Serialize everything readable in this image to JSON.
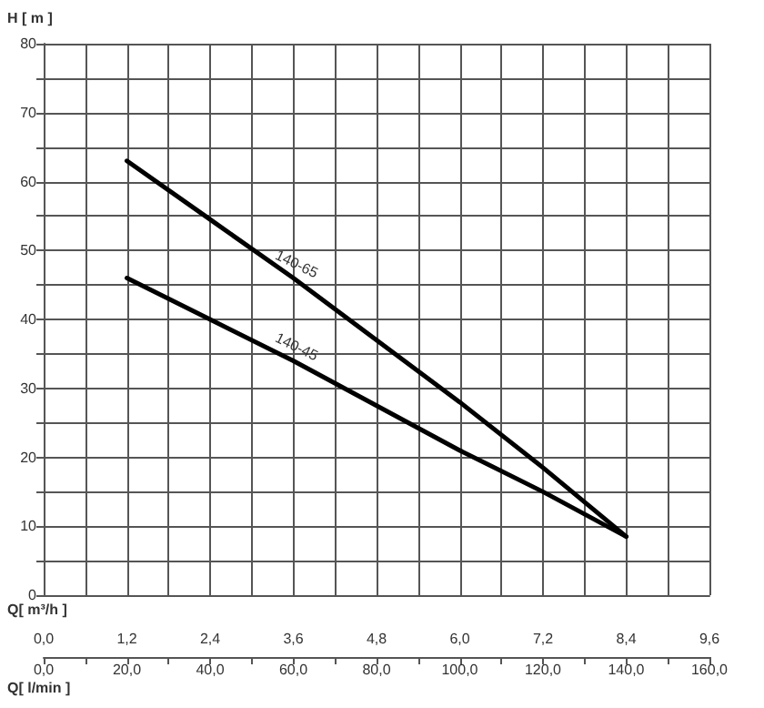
{
  "chart_data": {
    "type": "line",
    "ylabel": "H [ m ]",
    "xlabel": "Q[ l/min ]",
    "x2label": "Q[ m³/h ]",
    "xlim": [
      0,
      160
    ],
    "ylim": [
      0,
      80
    ],
    "xticks": [
      {
        "value": 0,
        "label": "0,0"
      },
      {
        "value": 10,
        "label": null
      },
      {
        "value": 20,
        "label": "20,0"
      },
      {
        "value": 30,
        "label": null
      },
      {
        "value": 40,
        "label": "40,0"
      },
      {
        "value": 50,
        "label": null
      },
      {
        "value": 60,
        "label": "60,0"
      },
      {
        "value": 70,
        "label": null
      },
      {
        "value": 80,
        "label": "80,0"
      },
      {
        "value": 90,
        "label": null
      },
      {
        "value": 100,
        "label": "100,0"
      },
      {
        "value": 110,
        "label": null
      },
      {
        "value": 120,
        "label": "120,0"
      },
      {
        "value": 130,
        "label": null
      },
      {
        "value": 140,
        "label": "140,0"
      },
      {
        "value": 150,
        "label": null
      },
      {
        "value": 160,
        "label": "160,0"
      }
    ],
    "x2lim": [
      0,
      9.6
    ],
    "x2ticks": [
      {
        "value": 0,
        "label": "0,0"
      },
      {
        "value": 1.2,
        "label": "1,2"
      },
      {
        "value": 2.4,
        "label": "2,4"
      },
      {
        "value": 3.6,
        "label": "3,6"
      },
      {
        "value": 4.8,
        "label": "4,8"
      },
      {
        "value": 6,
        "label": "6,0"
      },
      {
        "value": 7.2,
        "label": "7,2"
      },
      {
        "value": 8.4,
        "label": "8,4"
      },
      {
        "value": 9.6,
        "label": "9,6"
      }
    ],
    "yticks": [
      0,
      {
        "value": 5,
        "label": null
      },
      10,
      {
        "value": 15,
        "label": null
      },
      20,
      {
        "value": 25,
        "label": null
      },
      30,
      {
        "value": 35,
        "label": null
      },
      40,
      {
        "value": 45,
        "label": null
      },
      50,
      {
        "value": 55,
        "label": null
      },
      60,
      {
        "value": 65,
        "label": null
      },
      70,
      {
        "value": 75,
        "label": null
      },
      80
    ],
    "grid": true,
    "legend": false,
    "marker": "none",
    "line_style": "solid",
    "series": [
      {
        "name": "140-65",
        "color": "#000000",
        "x": [
          20,
          40,
          60,
          80,
          100,
          120,
          140
        ],
        "values": [
          63,
          54.5,
          46,
          37,
          28,
          18.5,
          8.5
        ]
      },
      {
        "name": "140-45",
        "color": "#000000",
        "x": [
          20,
          40,
          60,
          80,
          100,
          120,
          140
        ],
        "values": [
          46,
          40,
          34,
          27.5,
          21,
          15,
          8.5
        ]
      }
    ]
  }
}
